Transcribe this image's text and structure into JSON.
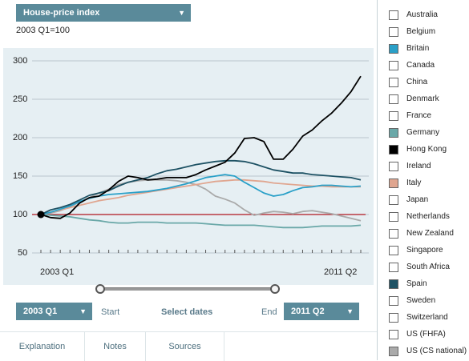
{
  "header": {
    "index_dropdown": "House-price index",
    "subtitle": "2003 Q1=100"
  },
  "chart_data": {
    "type": "line",
    "ylim": [
      50,
      300
    ],
    "yticks": [
      "300",
      "250",
      "200",
      "150",
      "100",
      "50"
    ],
    "x_start_label": "2003 Q1",
    "x_end_label": "2011 Q2",
    "reference_line": 100,
    "x": [
      "2003 Q1",
      "2003 Q2",
      "2003 Q3",
      "2003 Q4",
      "2004 Q1",
      "2004 Q2",
      "2004 Q3",
      "2004 Q4",
      "2005 Q1",
      "2005 Q2",
      "2005 Q3",
      "2005 Q4",
      "2006 Q1",
      "2006 Q2",
      "2006 Q3",
      "2006 Q4",
      "2007 Q1",
      "2007 Q2",
      "2007 Q3",
      "2007 Q4",
      "2008 Q1",
      "2008 Q2",
      "2008 Q3",
      "2008 Q4",
      "2009 Q1",
      "2009 Q2",
      "2009 Q3",
      "2009 Q4",
      "2010 Q1",
      "2010 Q2",
      "2010 Q3",
      "2010 Q4",
      "2011 Q1",
      "2011 Q2"
    ],
    "series": [
      {
        "name": "Hong Kong",
        "color": "#000000",
        "values": [
          100,
          96,
          95,
          102,
          115,
          122,
          124,
          132,
          143,
          150,
          148,
          145,
          146,
          148,
          148,
          148,
          152,
          158,
          163,
          168,
          180,
          199,
          200,
          195,
          172,
          172,
          185,
          202,
          210,
          222,
          232,
          245,
          260,
          280
        ]
      },
      {
        "name": "Spain",
        "color": "#1e5264",
        "values": [
          100,
          106,
          109,
          113,
          119,
          125,
          128,
          131,
          137,
          142,
          145,
          148,
          153,
          157,
          159,
          162,
          165,
          167,
          169,
          170,
          170,
          169,
          166,
          162,
          158,
          156,
          154,
          154,
          152,
          151,
          150,
          149,
          148,
          145
        ]
      },
      {
        "name": "Britain",
        "color": "#2aa0c8",
        "values": [
          100,
          103,
          107,
          111,
          117,
          121,
          124,
          126,
          127,
          128,
          129,
          130,
          132,
          134,
          137,
          140,
          144,
          148,
          150,
          152,
          150,
          142,
          135,
          128,
          124,
          126,
          131,
          135,
          136,
          138,
          138,
          137,
          136,
          137
        ]
      },
      {
        "name": "Italy",
        "color": "#e0a690",
        "values": [
          100,
          103,
          106,
          109,
          112,
          115,
          118,
          120,
          122,
          125,
          127,
          129,
          131,
          133,
          135,
          137,
          139,
          141,
          143,
          144,
          145,
          145,
          144,
          143,
          141,
          140,
          139,
          138,
          137,
          137,
          136,
          136,
          136,
          136
        ]
      },
      {
        "name": "US (CS national)",
        "color": "#aaaaaa",
        "values": [
          100,
          102,
          105,
          110,
          116,
          122,
          128,
          133,
          139,
          142,
          144,
          145,
          145,
          145,
          144,
          142,
          139,
          133,
          124,
          120,
          115,
          106,
          99,
          102,
          104,
          103,
          101,
          104,
          105,
          103,
          101,
          98,
          95,
          92
        ]
      },
      {
        "name": "Germany",
        "color": "#6aa8a8",
        "values": [
          100,
          99,
          98,
          97,
          95,
          93,
          92,
          90,
          89,
          89,
          90,
          90,
          90,
          89,
          89,
          89,
          89,
          88,
          87,
          86,
          86,
          86,
          86,
          85,
          84,
          83,
          83,
          83,
          84,
          85,
          85,
          85,
          85,
          86
        ]
      }
    ]
  },
  "slider": {
    "start_value": "2003 Q1",
    "end_value": "2011 Q2",
    "start_label": "Start",
    "select_label": "Select dates",
    "end_label": "End"
  },
  "tabs": [
    "Explanation",
    "Notes",
    "Sources"
  ],
  "legend": [
    {
      "name": "Australia",
      "color": "#ffffff"
    },
    {
      "name": "Belgium",
      "color": "#ffffff"
    },
    {
      "name": "Britain",
      "color": "#2aa0c8"
    },
    {
      "name": "Canada",
      "color": "#ffffff"
    },
    {
      "name": "China",
      "color": "#ffffff"
    },
    {
      "name": "Denmark",
      "color": "#ffffff"
    },
    {
      "name": "France",
      "color": "#ffffff"
    },
    {
      "name": "Germany",
      "color": "#6aa8a8"
    },
    {
      "name": "Hong Kong",
      "color": "#000000"
    },
    {
      "name": "Ireland",
      "color": "#ffffff"
    },
    {
      "name": "Italy",
      "color": "#e0a690"
    },
    {
      "name": "Japan",
      "color": "#ffffff"
    },
    {
      "name": "Netherlands",
      "color": "#ffffff"
    },
    {
      "name": "New Zealand",
      "color": "#ffffff"
    },
    {
      "name": "Singapore",
      "color": "#ffffff"
    },
    {
      "name": "South Africa",
      "color": "#ffffff"
    },
    {
      "name": "Spain",
      "color": "#1e5264"
    },
    {
      "name": "Sweden",
      "color": "#ffffff"
    },
    {
      "name": "Switzerland",
      "color": "#ffffff"
    },
    {
      "name": "US (FHFA)",
      "color": "#ffffff"
    },
    {
      "name": "US (CS national)",
      "color": "#aaaaaa"
    }
  ]
}
